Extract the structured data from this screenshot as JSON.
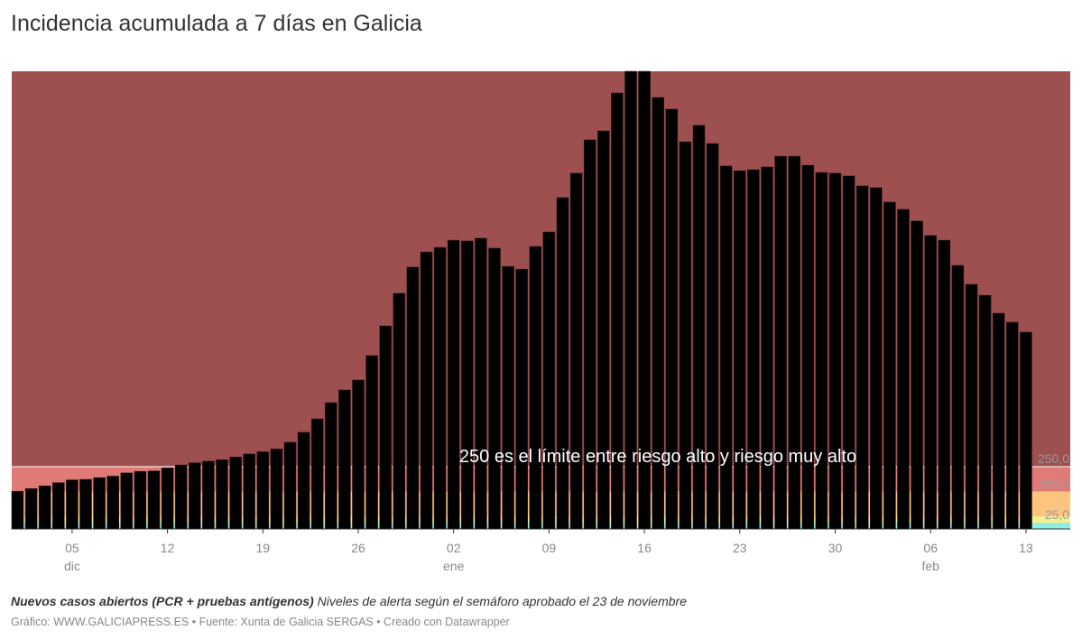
{
  "title": "Incidencia acumulada a 7 días en Galicia",
  "notes": {
    "bold": "Nuevos casos abiertos (PCR + pruebas antígenos)",
    "text": "Niveles de alerta según el semáforo aprobado el 23 de noviembre"
  },
  "credits": "Gráfico: WWW.GALICIAPRESS.ES • Fuente: Xunta de Galicia SERGAS • Creado con Datawrapper",
  "chart_data": {
    "type": "bar",
    "title": "Incidencia acumulada a 7 días en Galicia",
    "x_start": "2020-12-01",
    "x_end": "2021-02-13",
    "values": [
      151,
      162,
      173,
      186,
      197,
      199,
      206,
      212,
      225,
      231,
      233,
      245,
      257,
      266,
      272,
      278,
      289,
      301,
      310,
      321,
      348,
      388,
      442,
      507,
      558,
      598,
      696,
      815,
      946,
      1051,
      1112,
      1130,
      1159,
      1156,
      1167,
      1127,
      1054,
      1043,
      1134,
      1192,
      1330,
      1428,
      1562,
      1598,
      1750,
      1900,
      1900,
      1732,
      1685,
      1554,
      1620,
      1547,
      1457,
      1438,
      1442,
      1453,
      1496,
      1496,
      1460,
      1431,
      1428,
      1417,
      1377,
      1370,
      1312,
      1283,
      1236,
      1178,
      1159,
      1058,
      982,
      938,
      866,
      830,
      790
    ],
    "ylim": [
      0,
      1837
    ],
    "x_ticks": [
      {
        "day": 4,
        "label": "05",
        "sub": "dic"
      },
      {
        "day": 11,
        "label": "12",
        "sub": ""
      },
      {
        "day": 18,
        "label": "19",
        "sub": ""
      },
      {
        "day": 25,
        "label": "26",
        "sub": ""
      },
      {
        "day": 32,
        "label": "02",
        "sub": "ene"
      },
      {
        "day": 39,
        "label": "09",
        "sub": ""
      },
      {
        "day": 46,
        "label": "16",
        "sub": ""
      },
      {
        "day": 53,
        "label": "23",
        "sub": ""
      },
      {
        "day": 60,
        "label": "30",
        "sub": ""
      },
      {
        "day": 67,
        "label": "06",
        "sub": "feb"
      },
      {
        "day": 74,
        "label": "13",
        "sub": ""
      }
    ],
    "bands": [
      {
        "from": 250,
        "to": 1837,
        "color": "#9e5050",
        "label": "250,0"
      },
      {
        "from": 150,
        "to": 250,
        "color": "#e07a77",
        "label": "150,0"
      },
      {
        "from": 50,
        "to": 150,
        "color": "#fbc580",
        "label": ""
      },
      {
        "from": 25,
        "to": 50,
        "color": "#f6ef8a",
        "label": "25,0"
      },
      {
        "from": 0,
        "to": 25,
        "color": "#8ef0e2",
        "label": ""
      }
    ],
    "annotation": {
      "value": 250,
      "text": "250 es el límite entre riesgo alto y riesgo muy alto"
    },
    "bar_color": "#000000",
    "grid": false
  }
}
